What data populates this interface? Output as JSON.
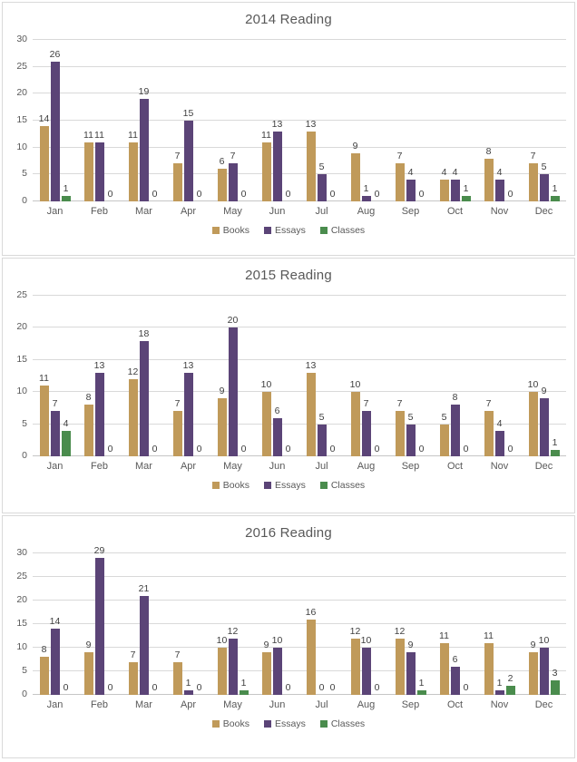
{
  "colors": {
    "Books": "#C09A5A",
    "Essays": "#5B4477",
    "Classes": "#4A8C4D",
    "panel_border": "#D9D9D9",
    "gridline": "#D9D9D9",
    "axis_line": "#C6C6C6",
    "title_text": "#595959",
    "tick_text": "#595959",
    "value_label_text": "#3F3F3F"
  },
  "chart_data": [
    {
      "type": "bar",
      "title": "2014 Reading",
      "categories": [
        "Jan",
        "Feb",
        "Mar",
        "Apr",
        "May",
        "Jun",
        "Jul",
        "Aug",
        "Sep",
        "Oct",
        "Nov",
        "Dec"
      ],
      "series": [
        {
          "name": "Books",
          "values": [
            14,
            11,
            11,
            7,
            6,
            11,
            13,
            9,
            7,
            4,
            8,
            7
          ]
        },
        {
          "name": "Essays",
          "values": [
            26,
            11,
            19,
            15,
            7,
            13,
            5,
            1,
            4,
            4,
            4,
            5
          ]
        },
        {
          "name": "Classes",
          "values": [
            1,
            0,
            0,
            0,
            0,
            0,
            0,
            0,
            0,
            1,
            0,
            1
          ]
        }
      ],
      "ylim": [
        0,
        30
      ],
      "ytick_step": 5,
      "grid": true,
      "data_labels": true,
      "legend_position": "bottom"
    },
    {
      "type": "bar",
      "title": "2015 Reading",
      "categories": [
        "Jan",
        "Feb",
        "Mar",
        "Apr",
        "May",
        "Jun",
        "Jul",
        "Aug",
        "Sep",
        "Oct",
        "Nov",
        "Dec"
      ],
      "series": [
        {
          "name": "Books",
          "values": [
            11,
            8,
            12,
            7,
            9,
            10,
            13,
            10,
            7,
            5,
            7,
            10
          ]
        },
        {
          "name": "Essays",
          "values": [
            7,
            13,
            18,
            13,
            20,
            6,
            5,
            7,
            5,
            8,
            4,
            9
          ]
        },
        {
          "name": "Classes",
          "values": [
            4,
            0,
            0,
            0,
            0,
            0,
            0,
            0,
            0,
            0,
            0,
            1
          ]
        }
      ],
      "ylim": [
        0,
        25
      ],
      "ytick_step": 5,
      "grid": true,
      "data_labels": true,
      "legend_position": "bottom"
    },
    {
      "type": "bar",
      "title": "2016 Reading",
      "categories": [
        "Jan",
        "Feb",
        "Mar",
        "Apr",
        "May",
        "Jun",
        "Jul",
        "Aug",
        "Sep",
        "Oct",
        "Nov",
        "Dec"
      ],
      "series": [
        {
          "name": "Books",
          "values": [
            8,
            9,
            7,
            7,
            10,
            9,
            16,
            12,
            12,
            11,
            11,
            9
          ]
        },
        {
          "name": "Essays",
          "values": [
            14,
            29,
            21,
            1,
            12,
            10,
            0,
            10,
            9,
            6,
            1,
            10
          ]
        },
        {
          "name": "Classes",
          "values": [
            0,
            0,
            0,
            0,
            1,
            0,
            0,
            0,
            1,
            0,
            2,
            3
          ]
        }
      ],
      "ylim": [
        0,
        30
      ],
      "ytick_step": 5,
      "grid": true,
      "data_labels": true,
      "legend_position": "bottom"
    }
  ]
}
